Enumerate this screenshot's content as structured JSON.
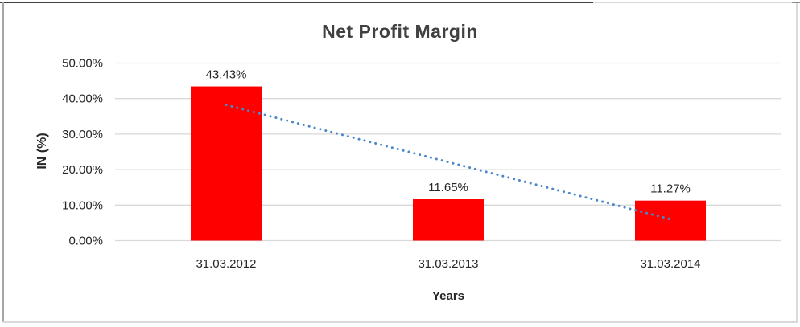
{
  "chart_data": {
    "type": "bar",
    "title": "Net Profit Margin",
    "xlabel": "Years",
    "ylabel": "IN (%)",
    "categories": [
      "31.03.2012",
      "31.03.2013",
      "31.03.2014"
    ],
    "values": [
      43.43,
      11.65,
      11.27
    ],
    "data_labels": [
      "43.43%",
      "11.65%",
      "11.27%"
    ],
    "ytick_labels": [
      "0.00%",
      "10.00%",
      "20.00%",
      "30.00%",
      "40.00%",
      "50.00%"
    ],
    "ylim": [
      0,
      50
    ],
    "ytick_step": 10,
    "grid": true,
    "legend_position": "none",
    "bar_color": "#FF0000",
    "gridline_color": "#D9D9D9",
    "text_color": "#262626",
    "title_color": "#404040",
    "trendline": {
      "type": "linear",
      "style": "dotted",
      "color": "#4A86C8",
      "fit_values": [
        38.2,
        22.12,
        6.04
      ]
    }
  }
}
